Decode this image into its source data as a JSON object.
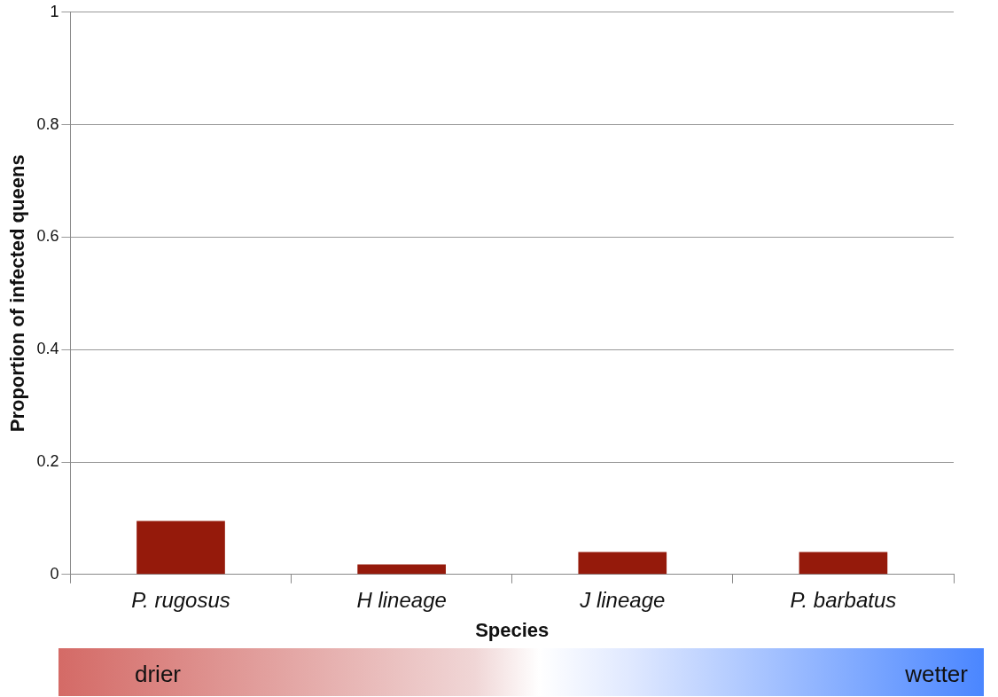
{
  "chart_data": {
    "type": "bar",
    "xlabel": "Species",
    "ylabel": "Proportion of infected queens",
    "categories": [
      "P. rugosus",
      "H lineage",
      "J lineage",
      "P. barbatus"
    ],
    "series": [
      {
        "color": "#951a0b",
        "values": [
          0.095,
          0.018,
          0.04,
          0.04
        ]
      }
    ],
    "ylim": [
      0,
      1
    ],
    "yticks": [
      0,
      0.2,
      0.4,
      0.6,
      0.8,
      1
    ],
    "grid": "y",
    "legend": false,
    "annotations": [
      "drier",
      "wetter"
    ]
  }
}
